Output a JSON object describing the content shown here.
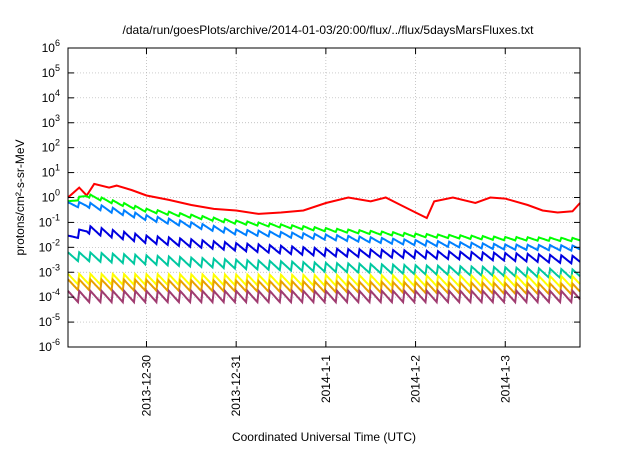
{
  "chart_data": {
    "type": "line",
    "title": "/data/run/goesPlots/archive/2014-01-03/20:00/flux/../flux/5daysMarsFluxes.txt",
    "xlabel": "Coordinated Universal Time (UTC)",
    "ylabel": "protons/cm²-s-sr-MeV",
    "y_scale": "log",
    "ylim": [
      "1e-6",
      "1e6"
    ],
    "xlim": [
      "2013-12-29T03:00",
      "2014-01-03T20:00"
    ],
    "grid": true,
    "legend": "none",
    "x_ticks": [
      {
        "date": "2013-12-30T00:00",
        "label": "2013-12-30"
      },
      {
        "date": "2013-12-31T00:00",
        "label": "2013-12-31"
      },
      {
        "date": "2014-01-01T00:00",
        "label": "2014-1-1"
      },
      {
        "date": "2014-01-02T00:00",
        "label": "2014-1-2"
      },
      {
        "date": "2014-01-03T00:00",
        "label": "2014-1-3"
      }
    ],
    "y_ticks": [
      {
        "exp": -6,
        "label": "10-6"
      },
      {
        "exp": -5,
        "label": "10-5"
      },
      {
        "exp": -4,
        "label": "10-4"
      },
      {
        "exp": -3,
        "label": "10-3"
      },
      {
        "exp": -2,
        "label": "10-2"
      },
      {
        "exp": -1,
        "label": "10-1"
      },
      {
        "exp": 0,
        "label": "100"
      },
      {
        "exp": 1,
        "label": "101"
      },
      {
        "exp": 2,
        "label": "102"
      },
      {
        "exp": 3,
        "label": "103"
      },
      {
        "exp": 4,
        "label": "104"
      },
      {
        "exp": 5,
        "label": "105"
      },
      {
        "exp": 6,
        "label": "106"
      }
    ],
    "series": [
      {
        "color": "#ff0000",
        "t0": "2013-12-29T06:00",
        "data": [
          [
            "2013-12-29T03:00",
            1.0
          ],
          [
            "2013-12-29T06:00",
            2.5
          ],
          [
            "2013-12-29T08:00",
            1.2
          ],
          [
            "2013-12-29T10:00",
            3.5
          ],
          [
            "2013-12-29T14:00",
            2.5
          ],
          [
            "2013-12-29T16:00",
            3.0
          ],
          [
            "2013-12-29T20:00",
            2.0
          ],
          [
            "2013-12-30T00:00",
            1.2
          ],
          [
            "2013-12-30T06:00",
            0.8
          ],
          [
            "2013-12-30T12:00",
            0.5
          ],
          [
            "2013-12-30T18:00",
            0.35
          ],
          [
            "2013-12-31T00:00",
            0.3
          ],
          [
            "2013-12-31T06:00",
            0.22
          ],
          [
            "2013-12-31T12:00",
            0.25
          ],
          [
            "2013-12-31T18:00",
            0.3
          ],
          [
            "2014-01-01T00:00",
            0.6
          ],
          [
            "2014-01-01T06:00",
            1.0
          ],
          [
            "2014-01-01T12:00",
            0.7
          ],
          [
            "2014-01-01T16:00",
            1.0
          ],
          [
            "2014-01-01T20:00",
            0.5
          ],
          [
            "2014-01-02T00:00",
            0.25
          ],
          [
            "2014-01-02T03:00",
            0.15
          ],
          [
            "2014-01-02T05:00",
            0.7
          ],
          [
            "2014-01-02T10:00",
            1.0
          ],
          [
            "2014-01-02T16:00",
            0.6
          ],
          [
            "2014-01-02T20:00",
            1.0
          ],
          [
            "2014-01-03T00:00",
            0.9
          ],
          [
            "2014-01-03T06:00",
            0.5
          ],
          [
            "2014-01-03T10:00",
            0.3
          ],
          [
            "2014-01-03T14:00",
            0.25
          ],
          [
            "2014-01-03T18:00",
            0.28
          ],
          [
            "2014-01-03T20:00",
            0.6
          ]
        ]
      },
      {
        "color": "#00ff00",
        "t0": "2013-12-29T03:00",
        "data": [
          [
            "2013-12-29T03:00",
            0.6
          ],
          [
            "2013-12-29T08:00",
            1.2
          ],
          [
            "2013-12-30T00:00",
            0.3
          ],
          [
            "2013-12-31T00:00",
            0.1
          ],
          [
            "2014-01-01T00:00",
            0.05
          ],
          [
            "2014-01-02T00:00",
            0.03
          ],
          [
            "2014-01-03T00:00",
            0.022
          ],
          [
            "2014-01-03T20:00",
            0.02
          ]
        ]
      },
      {
        "color": "#0080ff",
        "t0": "2013-12-29T03:00",
        "data": [
          [
            "2013-12-29T03:00",
            0.5
          ],
          [
            "2013-12-29T08:00",
            0.5
          ],
          [
            "2013-12-30T00:00",
            0.15
          ],
          [
            "2013-12-31T00:00",
            0.04
          ],
          [
            "2014-01-01T00:00",
            0.025
          ],
          [
            "2014-01-02T00:00",
            0.015
          ],
          [
            "2014-01-03T00:00",
            0.01
          ],
          [
            "2014-01-03T20:00",
            0.009
          ]
        ]
      },
      {
        "color": "#0000e0",
        "t0": "2013-12-29T03:00",
        "data": [
          [
            "2013-12-29T03:00",
            0.02
          ],
          [
            "2013-12-29T08:00",
            0.05
          ],
          [
            "2013-12-30T00:00",
            0.02
          ],
          [
            "2013-12-31T00:00",
            0.01
          ],
          [
            "2014-01-01T00:00",
            0.006
          ],
          [
            "2014-01-02T00:00",
            0.005
          ],
          [
            "2014-01-03T00:00",
            0.004
          ],
          [
            "2014-01-03T20:00",
            0.003
          ]
        ]
      },
      {
        "color": "#00c8a0",
        "t0": "2013-12-29T03:00",
        "data": [
          [
            "2013-12-29T03:00",
            0.004
          ],
          [
            "2013-12-29T08:00",
            0.004
          ],
          [
            "2013-12-30T00:00",
            0.003
          ],
          [
            "2013-12-31T00:00",
            0.002
          ],
          [
            "2014-01-01T00:00",
            0.0015
          ],
          [
            "2014-01-02T00:00",
            0.0012
          ],
          [
            "2014-01-03T00:00",
            0.001
          ],
          [
            "2014-01-03T20:00",
            0.0008
          ]
        ]
      },
      {
        "color": "#ffff00",
        "t0": "2013-12-29T03:00",
        "data": [
          [
            "2013-12-29T03:00",
            0.0005
          ],
          [
            "2014-01-03T20:00",
            0.0004
          ]
        ]
      },
      {
        "color": "#e8a000",
        "t0": "2013-12-29T03:00",
        "data": [
          [
            "2013-12-29T03:00",
            0.0003
          ],
          [
            "2014-01-03T20:00",
            0.0002
          ]
        ]
      },
      {
        "color": "#a03c70",
        "t0": "2013-12-29T03:00",
        "data": [
          [
            "2013-12-29T03:00",
            0.0001
          ],
          [
            "2014-01-03T20:00",
            0.0001
          ]
        ]
      }
    ]
  }
}
